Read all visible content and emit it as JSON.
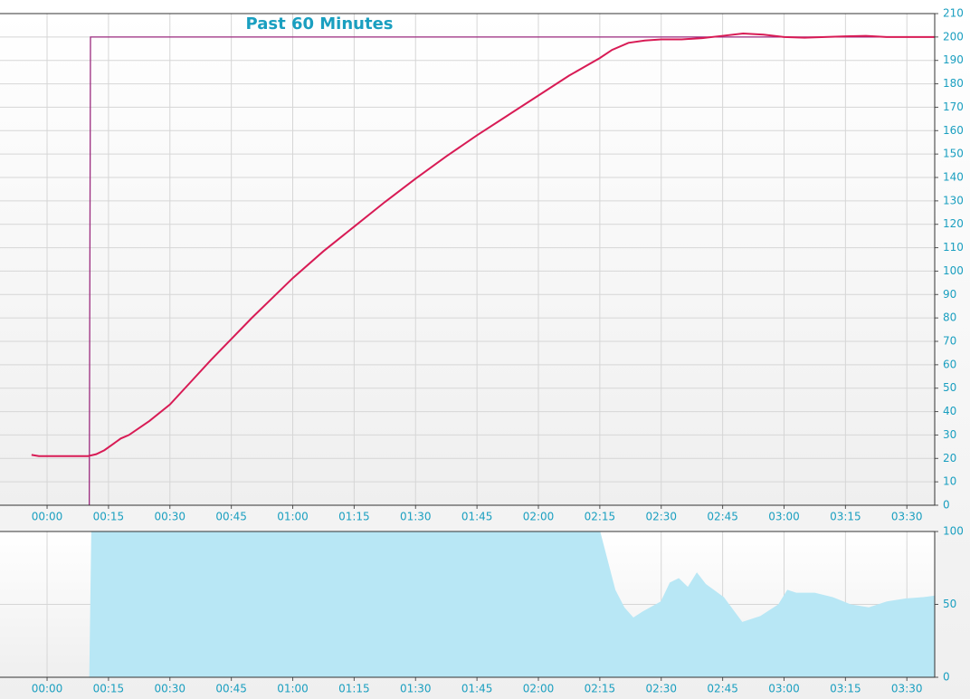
{
  "chart_data": [
    {
      "type": "line",
      "title": "Past 60 Minutes",
      "xlim": [
        -11.5,
        216.8
      ],
      "xticks": [
        {
          "value": 0,
          "label": "00:00"
        },
        {
          "value": 15,
          "label": "00:15"
        },
        {
          "value": 30,
          "label": "00:30"
        },
        {
          "value": 45,
          "label": "00:45"
        },
        {
          "value": 60,
          "label": "01:00"
        },
        {
          "value": 75,
          "label": "01:15"
        },
        {
          "value": 90,
          "label": "01:30"
        },
        {
          "value": 105,
          "label": "01:45"
        },
        {
          "value": 120,
          "label": "02:00"
        },
        {
          "value": 135,
          "label": "02:15"
        },
        {
          "value": 150,
          "label": "02:30"
        },
        {
          "value": 165,
          "label": "02:45"
        },
        {
          "value": 180,
          "label": "03:00"
        },
        {
          "value": 195,
          "label": "03:15"
        },
        {
          "value": 210,
          "label": "03:30"
        }
      ],
      "ylim": [
        0,
        210
      ],
      "yticks": [
        0,
        10,
        20,
        30,
        40,
        50,
        60,
        70,
        80,
        90,
        100,
        110,
        120,
        130,
        140,
        150,
        160,
        170,
        180,
        190,
        200,
        210
      ],
      "grid": true,
      "series": [
        {
          "color": "#9b2a7e",
          "x": [
            10.3,
            10.6,
            216.8
          ],
          "values": [
            0,
            200,
            200
          ]
        },
        {
          "color": "#d81b55",
          "x": [
            -3.8,
            -2,
            0,
            5,
            10,
            12,
            14,
            16,
            18,
            20,
            25,
            30,
            35,
            40,
            45,
            50,
            55,
            60,
            67.5,
            75,
            82.5,
            90,
            97.5,
            105,
            112.5,
            120,
            127.5,
            135,
            138,
            142,
            146,
            150,
            155,
            160,
            165,
            170,
            175,
            180,
            185,
            190,
            195,
            200,
            205,
            210,
            216.8
          ],
          "values": [
            21.5,
            21,
            21,
            21,
            21,
            21.8,
            23.5,
            26,
            28.5,
            30,
            36,
            43,
            52.5,
            62,
            71,
            80,
            88.5,
            97,
            108.5,
            119,
            129.5,
            139.5,
            149,
            158,
            166.5,
            175,
            183.5,
            191,
            194.5,
            197.5,
            198.5,
            199,
            199,
            199.5,
            200.5,
            201.5,
            201,
            200,
            199.7,
            200,
            200.3,
            200.5,
            200,
            200,
            200
          ]
        }
      ]
    },
    {
      "type": "area",
      "xlim": [
        -11.5,
        216.8
      ],
      "xticks": [
        {
          "value": 0,
          "label": "00:00"
        },
        {
          "value": 15,
          "label": "00:15"
        },
        {
          "value": 30,
          "label": "00:30"
        },
        {
          "value": 45,
          "label": "00:45"
        },
        {
          "value": 60,
          "label": "01:00"
        },
        {
          "value": 75,
          "label": "01:15"
        },
        {
          "value": 90,
          "label": "01:30"
        },
        {
          "value": 105,
          "label": "01:45"
        },
        {
          "value": 120,
          "label": "02:00"
        },
        {
          "value": 135,
          "label": "02:15"
        },
        {
          "value": 150,
          "label": "02:30"
        },
        {
          "value": 165,
          "label": "02:45"
        },
        {
          "value": 180,
          "label": "03:00"
        },
        {
          "value": 195,
          "label": "03:15"
        },
        {
          "value": 210,
          "label": "03:30"
        }
      ],
      "ylim": [
        0,
        100
      ],
      "yticks": [
        0,
        50,
        100
      ],
      "grid": true,
      "series": [
        {
          "color": "#b8e7f5",
          "x": [
            10.3,
            10.8,
            135.1,
            138.8,
            141.0,
            143.2,
            145.4,
            149.9,
            152.1,
            154.3,
            156.5,
            158.7,
            160.9,
            165.3,
            169.8,
            174.2,
            178.6,
            180.8,
            183.0,
            187.5,
            191.9,
            196.3,
            200.7,
            205.1,
            209.6,
            214.0,
            216.8
          ],
          "values": [
            0,
            100,
            100,
            60,
            48,
            41,
            45,
            52,
            65,
            68,
            62,
            72,
            64,
            55,
            38,
            42,
            50,
            60,
            58,
            58,
            55,
            50,
            48,
            52,
            54,
            55,
            56
          ]
        }
      ]
    }
  ]
}
